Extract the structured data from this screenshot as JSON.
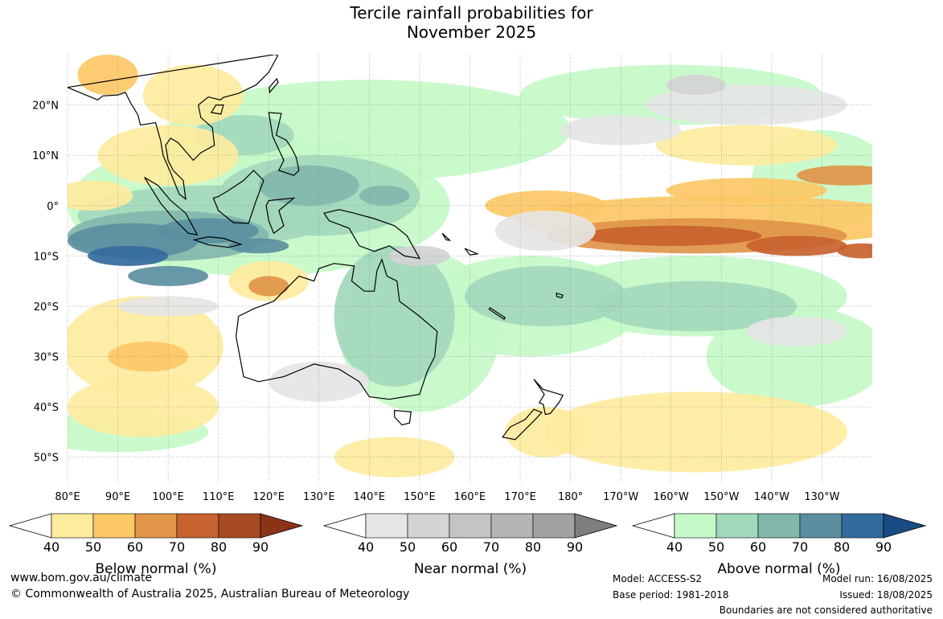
{
  "title_line1": "Tercile rainfall probabilities for",
  "title_line2": "November 2025",
  "map": {
    "lat_labels": [
      "20°N",
      "10°N",
      "0°",
      "10°S",
      "20°S",
      "30°S",
      "40°S",
      "50°S"
    ],
    "lon_labels": [
      "80°E",
      "90°E",
      "100°E",
      "110°E",
      "120°E",
      "130°E",
      "140°E",
      "150°E",
      "160°E",
      "170°E",
      "180°",
      "170°W",
      "160°W",
      "150°W",
      "140°W",
      "130°W"
    ]
  },
  "legends": [
    {
      "label": "Below normal (%)",
      "ticks": [
        "40",
        "50",
        "60",
        "70",
        "80",
        "90"
      ],
      "colors": [
        "#ffffff",
        "#fdeb9e",
        "#fdc866",
        "#e09548",
        "#c8622e",
        "#a84a22",
        "#8a3318"
      ]
    },
    {
      "label": "Near normal (%)",
      "ticks": [
        "40",
        "50",
        "60",
        "70",
        "80",
        "90"
      ],
      "colors": [
        "#ffffff",
        "#e5e5e5",
        "#d4d4d4",
        "#c4c4c4",
        "#b4b4b4",
        "#a2a2a2",
        "#7e7e7e"
      ]
    },
    {
      "label": "Above normal (%)",
      "ticks": [
        "40",
        "50",
        "60",
        "70",
        "80",
        "90"
      ],
      "colors": [
        "#ffffff",
        "#c6f9c8",
        "#a3d8bd",
        "#82b7ac",
        "#5b8fa0",
        "#336a9c",
        "#194c82"
      ]
    }
  ],
  "footer": {
    "url": "www.bom.gov.au/climate",
    "copyright": "© Commonwealth of Australia 2025, Australian Bureau of Meteorology",
    "model": "Model: ACCESS-S2",
    "base_period": "Base period: 1981-2018",
    "model_run": "Model run: 16/08/2025",
    "issued": "Issued: 18/08/2025",
    "boundaries": "Boundaries are not considered authoritative"
  }
}
